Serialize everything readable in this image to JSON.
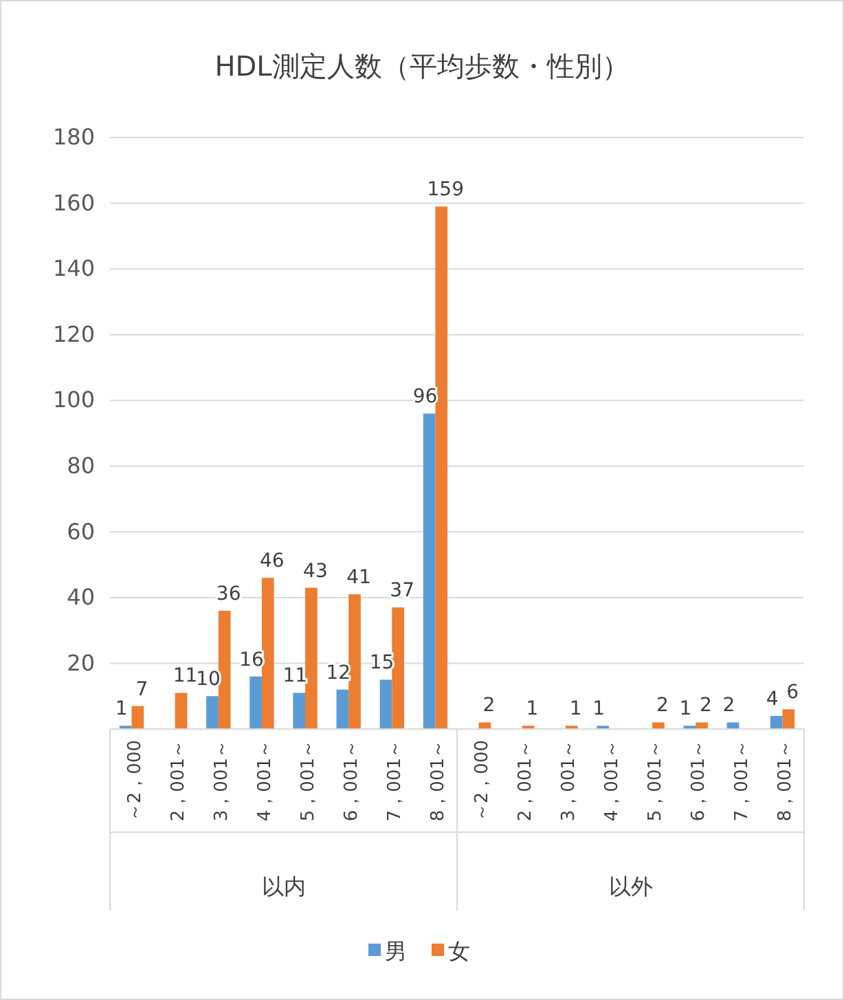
{
  "chart_data": {
    "type": "bar",
    "title": "HDL測定人数（平均歩数・性別）",
    "categories": [
      "～2，000",
      "2，001～",
      "3，001～",
      "4，001～",
      "5，001～",
      "6，001～",
      "7，001～",
      "8，001～",
      "～2，000",
      "2，001～",
      "3，001～",
      "4，001～",
      "5，001～",
      "6，001～",
      "7，001～",
      "8，001～"
    ],
    "series": [
      {
        "name": "男",
        "color": "#5b9bd5",
        "values": [
          1,
          null,
          10,
          16,
          11,
          12,
          15,
          96,
          null,
          null,
          null,
          1,
          null,
          1,
          2,
          4
        ]
      },
      {
        "name": "女",
        "color": "#ed7d31",
        "values": [
          7,
          11,
          36,
          46,
          43,
          41,
          37,
          159,
          2,
          1,
          1,
          null,
          2,
          2,
          null,
          6
        ]
      }
    ],
    "annotations": [
      "以内",
      "以外"
    ],
    "ylim": [
      0,
      180
    ],
    "yticks": [
      {
        "value": 0,
        "label": null
      },
      20,
      40,
      60,
      80,
      100,
      120,
      140,
      160,
      180
    ],
    "grid": "y",
    "legend": "bottom",
    "data_labels": true
  }
}
